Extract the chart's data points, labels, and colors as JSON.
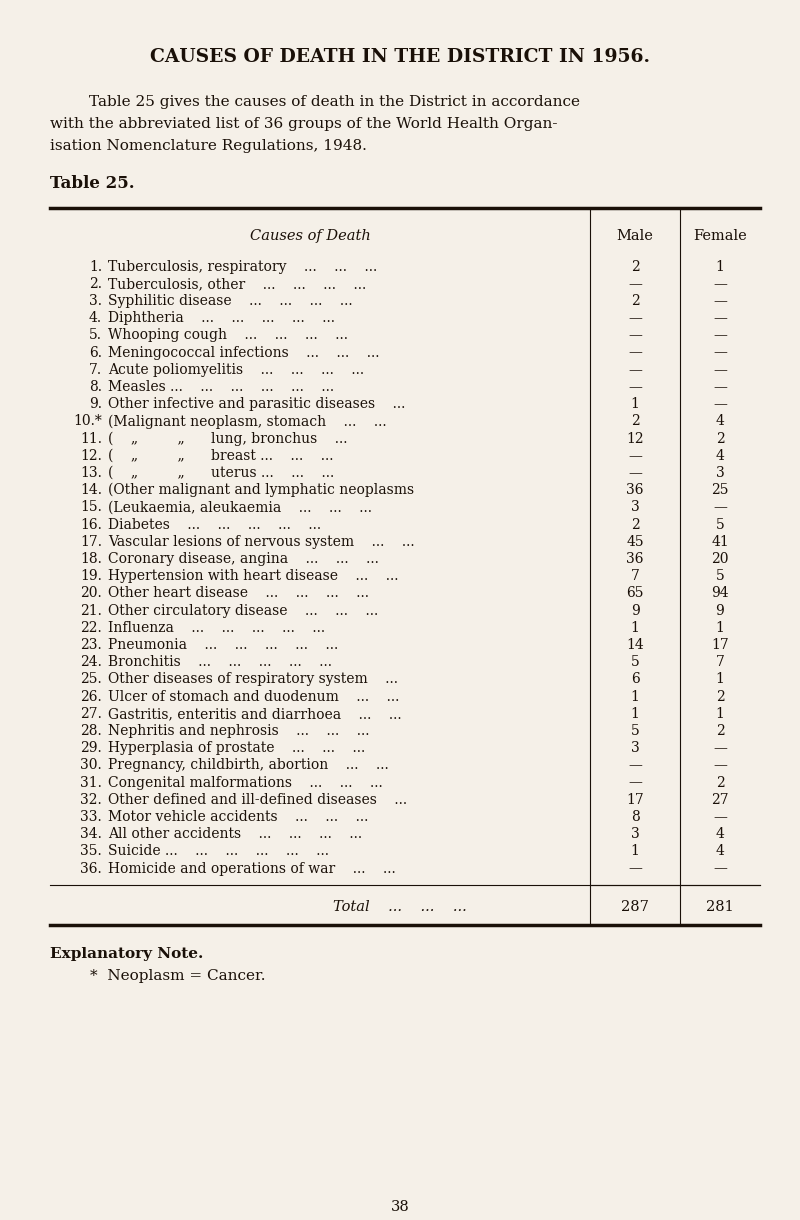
{
  "bg_color": "#f5f0e8",
  "text_color": "#1a1008",
  "title": "CAUSES OF DEATH IN THE DISTRICT IN 1956.",
  "intro_lines": [
    "        Table 25 gives the causes of death in the District in accordance",
    "with the abbreviated list of 36 groups of the World Health Organ-",
    "isation Nomenclature Regulations, 1948."
  ],
  "table_label": "Table 25.",
  "col_header_cause": "Causes of Death",
  "col_header_male": "Male",
  "col_header_female": "Female",
  "rows": [
    {
      "num": "1.",
      "cause": "Tuberculosis, respiratory    ...    ...    ...",
      "male": "2",
      "female": "1"
    },
    {
      "num": "2.",
      "cause": "Tuberculosis, other    ...    ...    ...    ...",
      "male": "—",
      "female": "—"
    },
    {
      "num": "3.",
      "cause": "Syphilitic disease    ...    ...    ...    ...",
      "male": "2",
      "female": "—"
    },
    {
      "num": "4.",
      "cause": "Diphtheria    ...    ...    ...    ...    ...",
      "male": "—",
      "female": "—"
    },
    {
      "num": "5.",
      "cause": "Whooping cough    ...    ...    ...    ...",
      "male": "—",
      "female": "—"
    },
    {
      "num": "6.",
      "cause": "Meningococcal infections    ...    ...    ...",
      "male": "—",
      "female": "—"
    },
    {
      "num": "7.",
      "cause": "Acute poliomyelitis    ...    ...    ...    ...",
      "male": "—",
      "female": "—"
    },
    {
      "num": "8.",
      "cause": "Measles ...    ...    ...    ...    ...    ...",
      "male": "—",
      "female": "—"
    },
    {
      "num": "9.",
      "cause": "Other infective and parasitic diseases    ...",
      "male": "1",
      "female": "—"
    },
    {
      "num": "10.*",
      "cause": "(Malignant neoplasm, stomach    ...    ...",
      "male": "2",
      "female": "4"
    },
    {
      "num": "11.",
      "cause": "(    „         „      lung, bronchus    ...",
      "male": "12",
      "female": "2"
    },
    {
      "num": "12.",
      "cause": "(    „         „      breast ...    ...    ...",
      "male": "—",
      "female": "4"
    },
    {
      "num": "13.",
      "cause": "(    „         „      uterus ...    ...    ...",
      "male": "—",
      "female": "3"
    },
    {
      "num": "14.",
      "cause": "(Other malignant and lymphatic neoplasms",
      "male": "36",
      "female": "25"
    },
    {
      "num": "15.",
      "cause": "(Leukaemia, aleukaemia    ...    ...    ...",
      "male": "3",
      "female": "—"
    },
    {
      "num": "16.",
      "cause": "Diabetes    ...    ...    ...    ...    ...",
      "male": "2",
      "female": "5"
    },
    {
      "num": "17.",
      "cause": "Vascular lesions of nervous system    ...    ...",
      "male": "45",
      "female": "41"
    },
    {
      "num": "18.",
      "cause": "Coronary disease, angina    ...    ...    ...",
      "male": "36",
      "female": "20"
    },
    {
      "num": "19.",
      "cause": "Hypertension with heart disease    ...    ...",
      "male": "7",
      "female": "5"
    },
    {
      "num": "20.",
      "cause": "Other heart disease    ...    ...    ...    ...",
      "male": "65",
      "female": "94"
    },
    {
      "num": "21.",
      "cause": "Other circulatory disease    ...    ...    ...",
      "male": "9",
      "female": "9"
    },
    {
      "num": "22.",
      "cause": "Influenza    ...    ...    ...    ...    ...",
      "male": "1",
      "female": "1"
    },
    {
      "num": "23.",
      "cause": "Pneumonia    ...    ...    ...    ...    ...",
      "male": "14",
      "female": "17"
    },
    {
      "num": "24.",
      "cause": "Bronchitis    ...    ...    ...    ...    ...",
      "male": "5",
      "female": "7"
    },
    {
      "num": "25.",
      "cause": "Other diseases of respiratory system    ...",
      "male": "6",
      "female": "1"
    },
    {
      "num": "26.",
      "cause": "Ulcer of stomach and duodenum    ...    ...",
      "male": "1",
      "female": "2"
    },
    {
      "num": "27.",
      "cause": "Gastritis, enteritis and diarrhoea    ...    ...",
      "male": "1",
      "female": "1"
    },
    {
      "num": "28.",
      "cause": "Nephritis and nephrosis    ...    ...    ...",
      "male": "5",
      "female": "2"
    },
    {
      "num": "29.",
      "cause": "Hyperplasia of prostate    ...    ...    ...",
      "male": "3",
      "female": "—"
    },
    {
      "num": "30.",
      "cause": "Pregnancy, childbirth, abortion    ...    ...",
      "male": "—",
      "female": "—"
    },
    {
      "num": "31.",
      "cause": "Congenital malformations    ...    ...    ...",
      "male": "—",
      "female": "2"
    },
    {
      "num": "32.",
      "cause": "Other defined and ill-defined diseases    ...",
      "male": "17",
      "female": "27"
    },
    {
      "num": "33.",
      "cause": "Motor vehicle accidents    ...    ...    ...",
      "male": "8",
      "female": "—"
    },
    {
      "num": "34.",
      "cause": "All other accidents    ...    ...    ...    ...",
      "male": "3",
      "female": "4"
    },
    {
      "num": "35.",
      "cause": "Suicide ...    ...    ...    ...    ...    ...",
      "male": "1",
      "female": "4"
    },
    {
      "num": "36.",
      "cause": "Homicide and operations of war    ...    ...",
      "male": "—",
      "female": "—"
    }
  ],
  "total_male": "287",
  "total_female": "281",
  "footnote_bold": "Explanatory Note.",
  "footnote": "*  Neoplasm = Cancer.",
  "page_num": "38"
}
